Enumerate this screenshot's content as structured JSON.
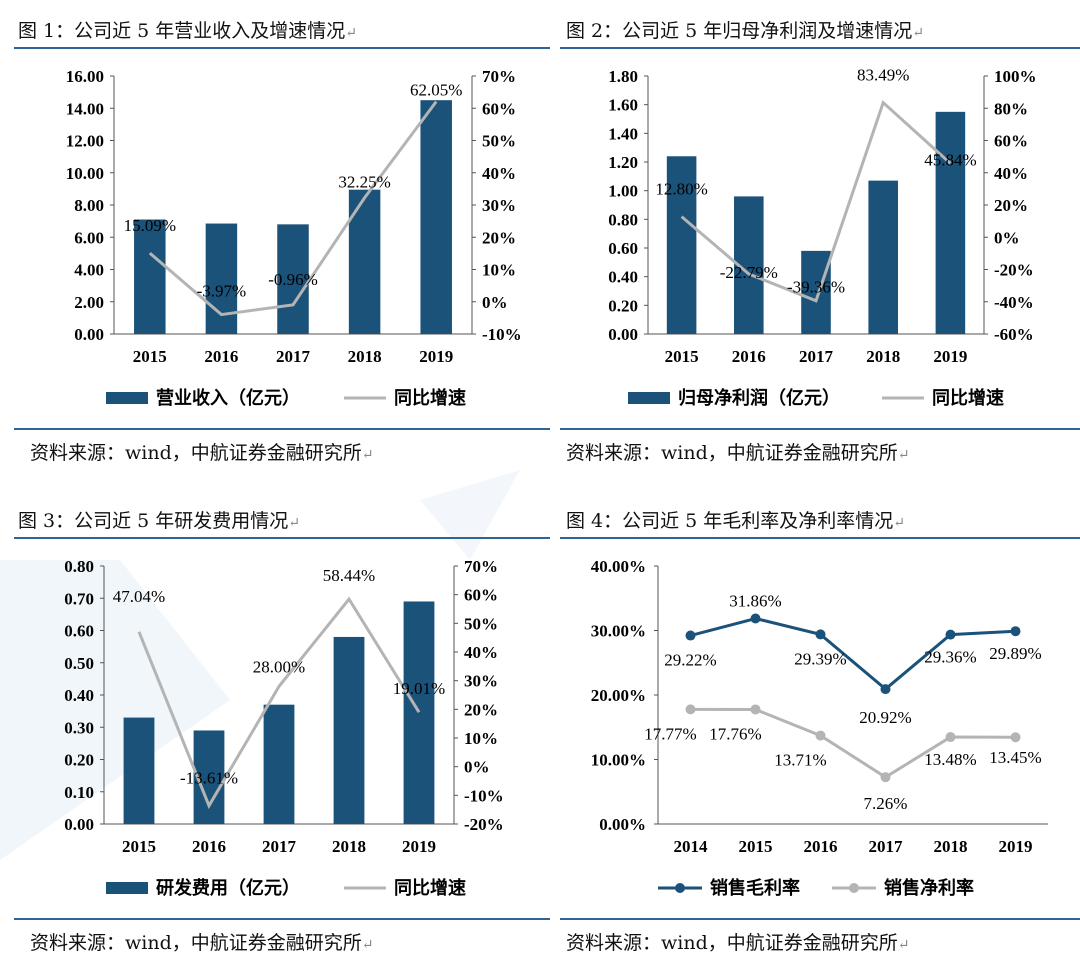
{
  "colors": {
    "bar": "#1a5279",
    "growth_line": "#b4b4b4",
    "margin_gross": "#1a5279",
    "margin_net": "#b4b4b4",
    "rule": "#2e6594"
  },
  "panels": [
    {
      "title": "图 1：公司近 5 年营业收入及增速情况",
      "source": "资料来源：wind，中航证券金融研究所",
      "legend": [
        "营业收入（亿元）",
        "同比增速"
      ]
    },
    {
      "title": "图 2：公司近 5 年归母净利润及增速情况",
      "source": "资料来源：wind，中航证券金融研究所",
      "legend": [
        "归母净利润（亿元）",
        "同比增速"
      ]
    },
    {
      "title": "图 3：公司近 5 年研发费用情况",
      "source": "资料来源：wind，中航证券金融研究所",
      "legend": [
        "研发费用（亿元）",
        "同比增速"
      ]
    },
    {
      "title": "图 4：公司近 5 年毛利率及净利率情况",
      "source": "资料来源：wind，中航证券金融研究所",
      "legend": [
        "销售毛利率",
        "销售净利率"
      ]
    }
  ],
  "chart_data": [
    {
      "type": "bar",
      "categories": [
        "2015",
        "2016",
        "2017",
        "2018",
        "2019"
      ],
      "series": [
        {
          "name": "营业收入（亿元）",
          "kind": "bar",
          "axis": "left",
          "values": [
            7.1,
            6.85,
            6.8,
            8.95,
            14.5
          ]
        },
        {
          "name": "同比增速",
          "kind": "line",
          "axis": "right",
          "values": [
            15.09,
            -3.97,
            -0.96,
            32.25,
            62.05
          ],
          "labels": [
            "15.09%",
            "-3.97%",
            "-0.96%",
            "32.25%",
            "62.05%"
          ]
        }
      ],
      "ylim_left": [
        0,
        16
      ],
      "yticks_left": [
        "0.00",
        "2.00",
        "4.00",
        "6.00",
        "8.00",
        "10.00",
        "12.00",
        "14.00",
        "16.00"
      ],
      "ylim_right": [
        -10,
        70
      ],
      "yticks_right": [
        "-10%",
        "0%",
        "10%",
        "20%",
        "30%",
        "40%",
        "50%",
        "60%",
        "70%"
      ]
    },
    {
      "type": "bar",
      "categories": [
        "2015",
        "2016",
        "2017",
        "2018",
        "2019"
      ],
      "series": [
        {
          "name": "归母净利润（亿元）",
          "kind": "bar",
          "axis": "left",
          "values": [
            1.24,
            0.96,
            0.58,
            1.07,
            1.55
          ]
        },
        {
          "name": "同比增速",
          "kind": "line",
          "axis": "right",
          "values": [
            12.8,
            -22.79,
            -39.36,
            83.49,
            45.84
          ],
          "labels": [
            "12.80%",
            "-22.79%",
            "-39.36%",
            "83.49%",
            "45.84%"
          ]
        }
      ],
      "ylim_left": [
        0,
        1.8
      ],
      "yticks_left": [
        "0.00",
        "0.20",
        "0.40",
        "0.60",
        "0.80",
        "1.00",
        "1.20",
        "1.40",
        "1.60",
        "1.80"
      ],
      "ylim_right": [
        -60,
        100
      ],
      "yticks_right": [
        "-60%",
        "-40%",
        "-20%",
        "0%",
        "20%",
        "40%",
        "60%",
        "80%",
        "100%"
      ]
    },
    {
      "type": "bar",
      "categories": [
        "2015",
        "2016",
        "2017",
        "2018",
        "2019"
      ],
      "series": [
        {
          "name": "研发费用（亿元）",
          "kind": "bar",
          "axis": "left",
          "values": [
            0.33,
            0.29,
            0.37,
            0.58,
            0.69
          ]
        },
        {
          "name": "同比增速",
          "kind": "line",
          "axis": "right",
          "values": [
            47.04,
            -13.61,
            28.0,
            58.44,
            19.01
          ],
          "labels": [
            "47.04%",
            "-13.61%",
            "28.00%",
            "58.44%",
            "19.01%"
          ]
        }
      ],
      "ylim_left": [
        0,
        0.8
      ],
      "yticks_left": [
        "0.00",
        "0.10",
        "0.20",
        "0.30",
        "0.40",
        "0.50",
        "0.60",
        "0.70",
        "0.80"
      ],
      "ylim_right": [
        -20,
        70
      ],
      "yticks_right": [
        "-20%",
        "-10%",
        "0%",
        "10%",
        "20%",
        "30%",
        "40%",
        "50%",
        "60%",
        "70%"
      ]
    },
    {
      "type": "line",
      "categories": [
        "2014",
        "2015",
        "2016",
        "2017",
        "2018",
        "2019"
      ],
      "series": [
        {
          "name": "销售毛利率",
          "values": [
            29.22,
            31.86,
            29.39,
            20.92,
            29.36,
            29.89
          ],
          "labels": [
            "29.22%",
            "31.86%",
            "29.39%",
            "20.92%",
            "29.36%",
            "29.89%"
          ]
        },
        {
          "name": "销售净利率",
          "values": [
            17.77,
            17.76,
            13.71,
            7.26,
            13.48,
            13.45
          ],
          "labels": [
            "17.77%",
            "17.76%",
            "13.71%",
            "7.26%",
            "13.48%",
            "13.45%"
          ]
        }
      ],
      "ylim": [
        0,
        40
      ],
      "yticks": [
        "0.00%",
        "10.00%",
        "20.00%",
        "30.00%",
        "40.00%"
      ]
    }
  ]
}
